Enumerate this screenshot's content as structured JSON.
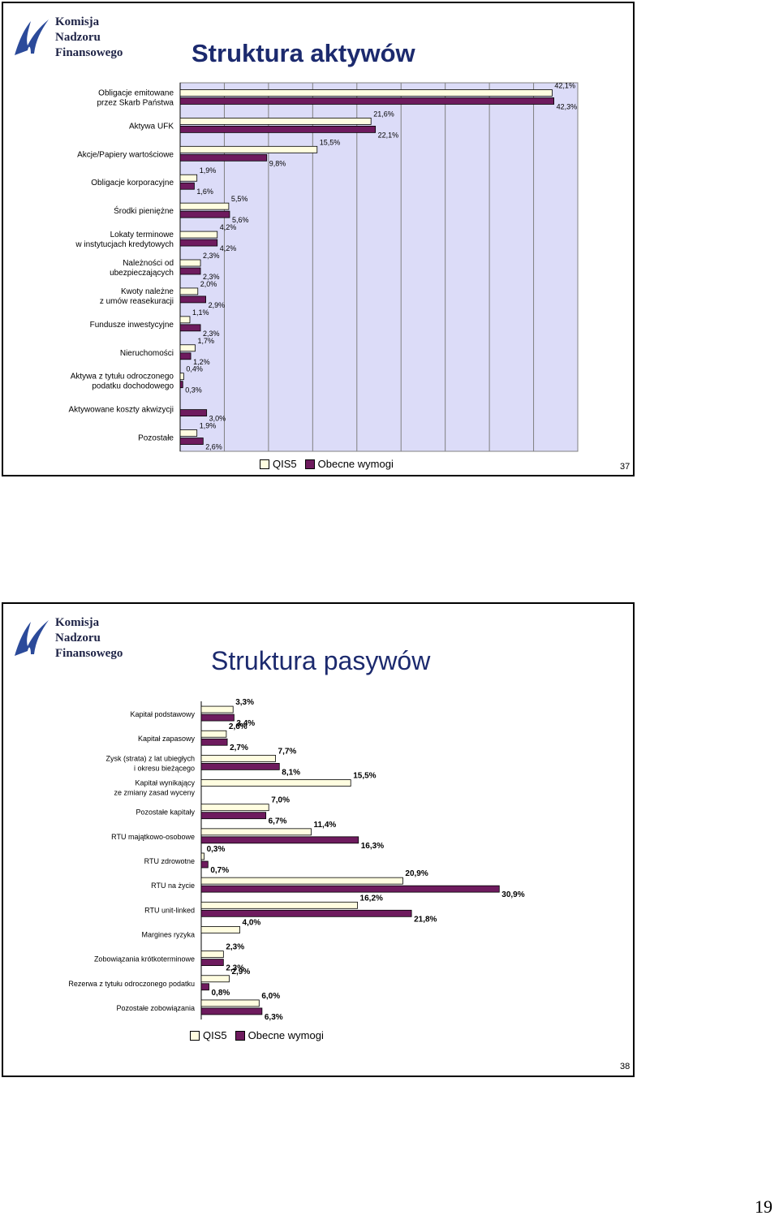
{
  "slides": [
    {
      "title": "Struktura aktywów",
      "logo": [
        "Komisja",
        "Nadzoru",
        "Finansowego"
      ],
      "page_number": "37",
      "legend": [
        "QIS5",
        "Obecne wymogi"
      ],
      "colors": {
        "qis5": "#fffde0",
        "obecne": "#6e1b5e",
        "plot_bg": "#dcdcf8"
      }
    },
    {
      "title": "Struktura pasywów",
      "logo": [
        "Komisja",
        "Nadzoru",
        "Finansowego"
      ],
      "page_number": "38",
      "legend": [
        "QIS5",
        "Obecne wymogi"
      ],
      "colors": {
        "qis5": "#fffde0",
        "obecne": "#6e1b5e",
        "plot_bg": "#ffffff"
      }
    }
  ],
  "outer_page_number": "19",
  "chart_data": [
    {
      "type": "bar",
      "orientation": "horizontal",
      "title": "Struktura aktywów",
      "xlim": [
        0,
        45
      ],
      "grid": true,
      "legend_position": "bottom",
      "categories": [
        "Obligacje emitowane\nprzez Skarb Państwa",
        "Aktywa UFK",
        "Akcje/Papiery wartościowe",
        "Obligacje korporacyjne",
        "Środki pieniężne",
        "Lokaty terminowe\nw instytucjach kredytowych",
        "Należności od\nubezpieczających",
        "Kwoty należne\nz umów reasekuracji",
        "Fundusze inwestycyjne",
        "Nieruchomości",
        "Aktywa z tytułu odroczonego\npodatku dochodowego",
        "Aktywowane koszty akwizycji",
        "Pozostałe"
      ],
      "series": [
        {
          "name": "QIS5",
          "values": [
            42.1,
            21.6,
            15.5,
            1.9,
            5.5,
            4.2,
            2.3,
            2.0,
            1.1,
            1.7,
            0.4,
            0,
            1.9
          ],
          "labels": [
            "42,1%",
            "21,6%",
            "15,5%",
            "1,9%",
            "5,5%",
            "4,2%",
            "2,3%",
            "2,0%",
            "1,1%",
            "1,7%",
            "0,4%",
            "",
            "1,9%"
          ]
        },
        {
          "name": "Obecne wymogi",
          "values": [
            42.3,
            22.1,
            9.8,
            1.6,
            5.6,
            4.2,
            2.3,
            2.9,
            2.3,
            1.2,
            0.3,
            3.0,
            2.6
          ],
          "labels": [
            "42,3%",
            "22,1%",
            "9,8%",
            "1,6%",
            "5,6%",
            "4,2%",
            "2,3%",
            "2,9%",
            "2,3%",
            "1,2%",
            "0,3%",
            "3,0%",
            "2,6%"
          ]
        }
      ]
    },
    {
      "type": "bar",
      "orientation": "horizontal",
      "title": "Struktura pasywów",
      "xlim": [
        0,
        35
      ],
      "grid": false,
      "legend_position": "bottom",
      "categories": [
        "Kapitał podstawowy",
        "Kapitał zapasowy",
        "Zysk (strata) z lat ubiegłych\ni okresu bieżącego",
        "Kapitał wynikający\nze zmiany zasad wyceny",
        "Pozostałe kapitały",
        "RTU majątkowo-osobowe",
        "RTU zdrowotne",
        "RTU na życie",
        "RTU unit-linked",
        "Margines ryzyka",
        "Zobowiązania krótkoterminowe",
        "Rezerwa z tytułu odroczonego podatku",
        "Pozostałe zobowiązania"
      ],
      "series": [
        {
          "name": "QIS5",
          "values": [
            3.3,
            2.6,
            7.7,
            15.5,
            7.0,
            11.4,
            0.3,
            20.9,
            16.2,
            4.0,
            2.3,
            2.9,
            6.0
          ],
          "labels": [
            "3,3%",
            "2,6%",
            "7,7%",
            "15,5%",
            "7,0%",
            "11,4%",
            "0,3%",
            "20,9%",
            "16,2%",
            "4,0%",
            "2,3%",
            "2,9%",
            "6,0%"
          ]
        },
        {
          "name": "Obecne wymogi",
          "values": [
            3.4,
            2.7,
            8.1,
            0,
            6.7,
            16.3,
            0.7,
            30.9,
            21.8,
            0,
            2.3,
            0.8,
            6.3
          ],
          "labels": [
            "3,4%",
            "2,7%",
            "8,1%",
            "",
            "6,7%",
            "16,3%",
            "0,7%",
            "30,9%",
            "21,8%",
            "",
            "2,3%",
            "0,8%",
            "6,3%"
          ]
        }
      ]
    }
  ]
}
